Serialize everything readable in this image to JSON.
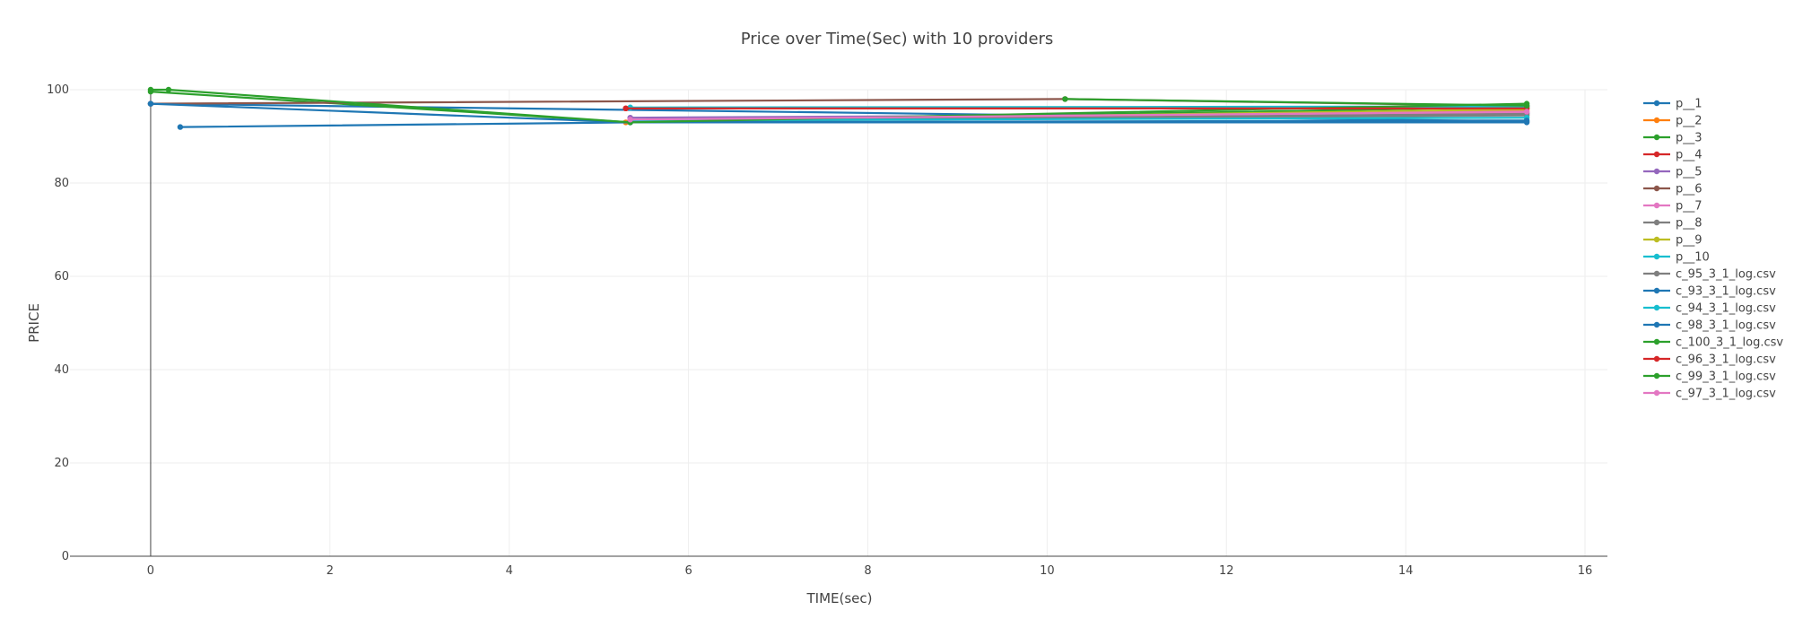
{
  "chart_data": {
    "type": "line",
    "title": "Price over Time(Sec) with 10 providers",
    "xlabel": "TIME(sec)",
    "ylabel": "PRICE",
    "xlim": [
      -0.9,
      16.25
    ],
    "ylim": [
      0,
      100
    ],
    "x_ticks": [
      0,
      2,
      4,
      6,
      8,
      10,
      12,
      14,
      16
    ],
    "y_ticks": [
      0,
      20,
      40,
      60,
      80,
      100
    ],
    "grid": true,
    "legend_position": "right",
    "series": [
      {
        "name": "p__1",
        "color": "#1f77b4",
        "x": [
          0,
          15.35
        ],
        "y": [
          97,
          93.2
        ]
      },
      {
        "name": "p__2",
        "color": "#ff7f0e",
        "x": [
          5.3,
          15.35
        ],
        "y": [
          93,
          95.5
        ]
      },
      {
        "name": "p__3",
        "color": "#2ca02c",
        "x": [
          0,
          5.35,
          15.35
        ],
        "y": [
          99.6,
          93,
          96.3
        ]
      },
      {
        "name": "p__4",
        "color": "#d62728",
        "x": [
          5.3,
          15.35
        ],
        "y": [
          96,
          96
        ]
      },
      {
        "name": "p__5",
        "color": "#9467bd",
        "x": [
          5.35,
          15.35
        ],
        "y": [
          94,
          95
        ]
      },
      {
        "name": "p__6",
        "color": "#8c564b",
        "x": [
          0,
          10.2,
          15.35
        ],
        "y": [
          97,
          98,
          96.5
        ]
      },
      {
        "name": "p__7",
        "color": "#e377c2",
        "x": [
          5.35,
          15.35
        ],
        "y": [
          93.5,
          95.2
        ]
      },
      {
        "name": "p__8",
        "color": "#7f7f7f",
        "x": [
          5.35,
          15.35
        ],
        "y": [
          93.2,
          94.5
        ]
      },
      {
        "name": "p__9",
        "color": "#bcbd22",
        "x": [
          5.35,
          15.35
        ],
        "y": [
          93.1,
          95.8
        ]
      },
      {
        "name": "p__10",
        "color": "#17becf",
        "x": [
          5.35,
          15.35
        ],
        "y": [
          96.2,
          96.4
        ]
      },
      {
        "name": "c_95_3_1_log.csv",
        "color": "#7f7f7f",
        "x": [
          5.35,
          15.35
        ],
        "y": [
          93.3,
          94.8
        ]
      },
      {
        "name": "c_93_3_1_log.csv",
        "color": "#1f77b4",
        "x": [
          0.33,
          5.35,
          15.35
        ],
        "y": [
          92,
          93,
          93
        ]
      },
      {
        "name": "c_94_3_1_log.csv",
        "color": "#17becf",
        "x": [
          5.35,
          15.35
        ],
        "y": [
          93.4,
          94
        ]
      },
      {
        "name": "c_98_3_1_log.csv",
        "color": "#1f77b4",
        "x": [
          0,
          5.35,
          15.35
        ],
        "y": [
          97,
          93,
          93.4
        ]
      },
      {
        "name": "c_100_3_1_log.csv",
        "color": "#2ca02c",
        "x": [
          0,
          0.2,
          5.35,
          15.35
        ],
        "y": [
          100,
          100,
          93,
          97
        ]
      },
      {
        "name": "c_96_3_1_log.csv",
        "color": "#d62728",
        "x": [
          5.3,
          15.35
        ],
        "y": [
          96,
          96
        ]
      },
      {
        "name": "c_99_3_1_log.csv",
        "color": "#2ca02c",
        "x": [
          10.2,
          15.35
        ],
        "y": [
          98,
          96.6
        ]
      },
      {
        "name": "c_97_3_1_log.csv",
        "color": "#e377c2",
        "x": [
          5.35,
          15.35
        ],
        "y": [
          93.6,
          95.3
        ]
      }
    ]
  }
}
